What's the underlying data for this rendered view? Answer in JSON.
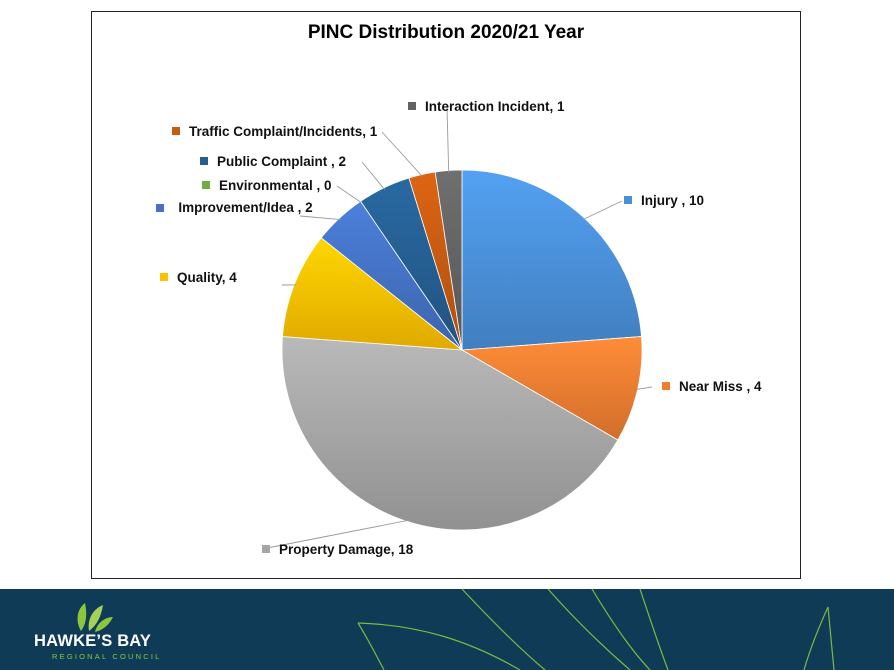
{
  "chart_data": {
    "type": "pie",
    "title": "PINC Distribution 2020/21 Year",
    "slices": [
      {
        "label": "Injury , 10",
        "value": 10,
        "color": "#4a90d9"
      },
      {
        "label": "Near Miss , 4",
        "value": 4,
        "color": "#ed7d31"
      },
      {
        "label": "Property Damage, 18",
        "value": 18,
        "color": "#a5a5a5"
      },
      {
        "label": "Quality, 4",
        "value": 4,
        "color": "#ffc000"
      },
      {
        "label": "Improvement/Idea , 2",
        "value": 2,
        "color": "#4472c4"
      },
      {
        "label": "Environmental , 0",
        "value": 0,
        "color": "#70ad47"
      },
      {
        "label": "Public Complaint , 2",
        "value": 2,
        "color": "#255e91"
      },
      {
        "label": "Traffic Complaint/Incidents, 1",
        "value": 1,
        "color": "#c55a11"
      },
      {
        "label": "Interaction Incident, 1",
        "value": 1,
        "color": "#636363"
      }
    ],
    "legend": "data-labels-outside"
  },
  "footer": {
    "logo_name": "HAWKE’S BAY",
    "logo_sub": "REGIONAL COUNCIL",
    "background_color": "#0f3b57",
    "accent_color": "#8cc63f"
  }
}
